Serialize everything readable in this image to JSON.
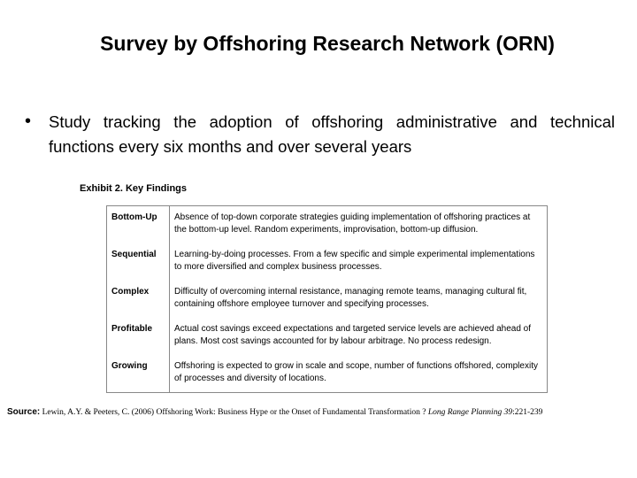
{
  "header": {
    "title": "Survey by Offshoring Research Network (ORN)"
  },
  "bullet": "Study tracking the adoption of offshoring administrative and technical functions every six months and over several years",
  "exhibit": {
    "title": "Exhibit 2. Key Findings"
  },
  "table": {
    "rows": [
      [
        "Bottom-Up",
        "Absence of top-down corporate strategies guiding implementation of offshoring practices at the bottom-up level. Random experiments, improvisation, bottom-up diffusion."
      ],
      [
        "Sequential",
        "Learning-by-doing processes. From a few specific and simple experimental implementations to more diversified and complex business processes."
      ],
      [
        "Complex",
        "Difficulty of overcoming internal resistance, managing remote teams, managing cultural fit, containing offshore employee turnover and specifying processes."
      ],
      [
        "Profitable",
        "Actual cost savings exceed expectations and targeted service levels are achieved ahead of plans. Most cost savings accounted for by labour arbitrage. No process redesign."
      ],
      [
        "Growing",
        "Offshoring is expected to grow in scale and scope, number of functions offshored, complexity of processes and diversity of locations."
      ]
    ]
  },
  "source": {
    "label": "Source:",
    "text": "Lewin, A.Y. & Peeters, C. (2006) Offshoring Work: Business Hype or the Onset of Fundamental Transformation ?",
    "journal": "Long Range Planning",
    "volume": "39",
    "pages": ":221-239"
  }
}
